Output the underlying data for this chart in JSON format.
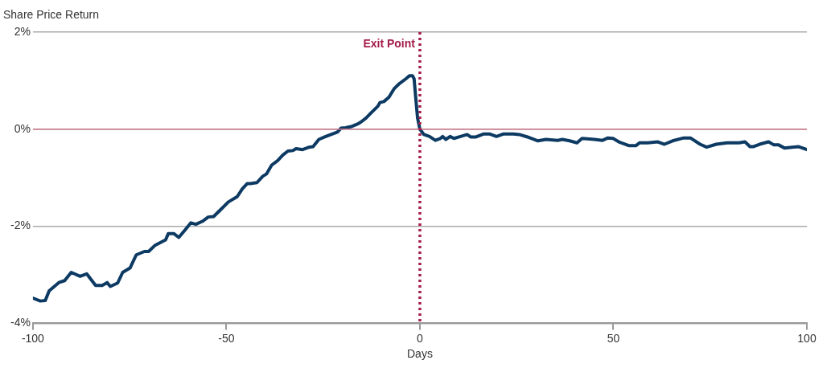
{
  "chart_data": {
    "type": "line",
    "ylabel": "Share Price Return",
    "xlabel": "Days",
    "x": [
      -100,
      -98.1,
      -96.8,
      -95.8,
      -93.3,
      -91.8,
      -90.1,
      -87.8,
      -86.1,
      -83.8,
      -82.1,
      -80.8,
      -80,
      -78.1,
      -76.8,
      -74.9,
      -73.3,
      -71.2,
      -70.1,
      -68.4,
      -65.7,
      -65,
      -63.6,
      -62.3,
      -60.6,
      -59.2,
      -57.9,
      -56,
      -54.7,
      -53.3,
      -51.4,
      -49.5,
      -47.2,
      -45.9,
      -44.6,
      -43.8,
      -42.1,
      -40.6,
      -39.6,
      -38.3,
      -36.8,
      -35.4,
      -34.1,
      -32.8,
      -32,
      -30.3,
      -28.6,
      -27.6,
      -26.1,
      -24.6,
      -22.7,
      -21.3,
      -20.4,
      -19.2,
      -17.5,
      -16,
      -15.2,
      -13.9,
      -12.8,
      -10.9,
      -10.3,
      -9.3,
      -8,
      -6.7,
      -5.3,
      -3.6,
      -2.7,
      -1.9,
      -1.5,
      -1.05,
      -0.6,
      0,
      1.05,
      2.5,
      4,
      5.3,
      5.9,
      6.7,
      7.8,
      8.8,
      10.5,
      12.2,
      13.1,
      14.5,
      16.4,
      18.1,
      19.8,
      21.5,
      24.2,
      25.7,
      27.8,
      30.5,
      32.6,
      35.6,
      36.8,
      38.7,
      40.6,
      41.9,
      45.1,
      47.2,
      48.6,
      49.9,
      51.4,
      54.1,
      55.8,
      56.8,
      58.9,
      61.5,
      63.2,
      65.3,
      68.2,
      69.9,
      72.4,
      74.1,
      76.6,
      79.4,
      82.5,
      84,
      85.3,
      86.1,
      87.8,
      90.1,
      91.4,
      92.6,
      94.3,
      96.2,
      97.9,
      100
    ],
    "series": [
      {
        "color": "#0d3a63",
        "values": [
          -3.48,
          -3.54,
          -3.53,
          -3.33,
          -3.16,
          -3.12,
          -2.95,
          -3.03,
          -2.98,
          -3.22,
          -3.22,
          -3.16,
          -3.24,
          -3.17,
          -2.95,
          -2.86,
          -2.59,
          -2.52,
          -2.52,
          -2.39,
          -2.28,
          -2.15,
          -2.15,
          -2.23,
          -2.07,
          -1.93,
          -1.96,
          -1.89,
          -1.81,
          -1.8,
          -1.65,
          -1.5,
          -1.39,
          -1.23,
          -1.12,
          -1.12,
          -1.1,
          -0.97,
          -0.92,
          -0.74,
          -0.65,
          -0.53,
          -0.45,
          -0.44,
          -0.4,
          -0.42,
          -0.37,
          -0.36,
          -0.21,
          -0.16,
          -0.1,
          -0.06,
          0.02,
          0.03,
          0.06,
          0.11,
          0.15,
          0.23,
          0.32,
          0.47,
          0.55,
          0.57,
          0.66,
          0.83,
          0.94,
          1.04,
          1.1,
          1.1,
          1.04,
          0.63,
          0.23,
          0,
          -0.11,
          -0.15,
          -0.23,
          -0.19,
          -0.15,
          -0.21,
          -0.15,
          -0.19,
          -0.15,
          -0.11,
          -0.16,
          -0.16,
          -0.1,
          -0.1,
          -0.15,
          -0.1,
          -0.1,
          -0.11,
          -0.16,
          -0.24,
          -0.21,
          -0.23,
          -0.21,
          -0.24,
          -0.28,
          -0.19,
          -0.21,
          -0.23,
          -0.18,
          -0.19,
          -0.26,
          -0.34,
          -0.34,
          -0.28,
          -0.28,
          -0.26,
          -0.31,
          -0.24,
          -0.18,
          -0.18,
          -0.31,
          -0.37,
          -0.31,
          -0.28,
          -0.28,
          -0.26,
          -0.36,
          -0.36,
          -0.31,
          -0.26,
          -0.32,
          -0.32,
          -0.39,
          -0.37,
          -0.36,
          -0.42
        ]
      }
    ],
    "xlim": [
      -100,
      100
    ],
    "xticks": [
      -100,
      -50,
      0,
      50,
      100
    ],
    "ylim": [
      -4,
      2
    ],
    "yticks": [
      {
        "value": -4,
        "label": "-4%"
      },
      {
        "value": -2,
        "label": "-2%"
      },
      {
        "value": 0,
        "label": "0%"
      },
      {
        "value": 2,
        "label": "2%"
      }
    ],
    "grid": "y",
    "legend": false,
    "marker": "none",
    "line_style": "solid",
    "ref_lines": [
      {
        "axis": "y",
        "value": 0,
        "color": "#c9768a",
        "line_style": "solid"
      },
      {
        "axis": "x",
        "value": 0,
        "label": "Exit Point",
        "color": "#a51d4a",
        "line_style": "dotted"
      }
    ]
  }
}
